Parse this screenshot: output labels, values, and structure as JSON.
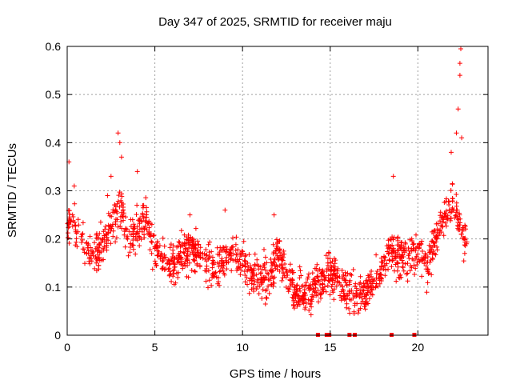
{
  "chart_data": {
    "type": "scatter",
    "title": "Day 347 of 2025, SRMTID for receiver maju",
    "xlabel": "GPS time / hours",
    "ylabel": "SRMTID / TECUs",
    "xlim": [
      0,
      24
    ],
    "ylim": [
      0,
      0.6
    ],
    "xticks": [
      0,
      5,
      10,
      15,
      20
    ],
    "xtick_labels": [
      "0",
      "5",
      "10",
      "15",
      "20"
    ],
    "yticks": [
      0,
      0.1,
      0.2,
      0.3,
      0.4,
      0.5,
      0.6
    ],
    "ytick_labels": [
      "0",
      "0.1",
      "0.2",
      "0.3",
      "0.4",
      "0.5",
      "0.6"
    ],
    "grid": true,
    "marker": "plus",
    "color": "#ff0000",
    "series": [
      {
        "name": "SRMTID",
        "trend": [
          [
            0.0,
            0.24
          ],
          [
            0.5,
            0.22
          ],
          [
            1.0,
            0.18
          ],
          [
            1.5,
            0.16
          ],
          [
            2.0,
            0.19
          ],
          [
            2.5,
            0.22
          ],
          [
            3.0,
            0.27
          ],
          [
            3.5,
            0.2
          ],
          [
            4.0,
            0.22
          ],
          [
            4.5,
            0.24
          ],
          [
            5.0,
            0.18
          ],
          [
            5.5,
            0.15
          ],
          [
            6.0,
            0.15
          ],
          [
            6.5,
            0.16
          ],
          [
            7.0,
            0.18
          ],
          [
            7.5,
            0.17
          ],
          [
            8.0,
            0.15
          ],
          [
            8.5,
            0.14
          ],
          [
            9.0,
            0.16
          ],
          [
            9.5,
            0.17
          ],
          [
            10.0,
            0.15
          ],
          [
            10.5,
            0.13
          ],
          [
            11.0,
            0.12
          ],
          [
            11.5,
            0.12
          ],
          [
            12.0,
            0.17
          ],
          [
            12.5,
            0.12
          ],
          [
            13.0,
            0.09
          ],
          [
            13.5,
            0.08
          ],
          [
            14.0,
            0.1
          ],
          [
            14.5,
            0.11
          ],
          [
            15.0,
            0.13
          ],
          [
            15.5,
            0.11
          ],
          [
            16.0,
            0.09
          ],
          [
            16.5,
            0.08
          ],
          [
            17.0,
            0.09
          ],
          [
            17.5,
            0.11
          ],
          [
            18.0,
            0.14
          ],
          [
            18.5,
            0.17
          ],
          [
            19.0,
            0.16
          ],
          [
            19.5,
            0.16
          ],
          [
            20.0,
            0.18
          ],
          [
            20.5,
            0.14
          ],
          [
            21.0,
            0.2
          ],
          [
            21.5,
            0.25
          ],
          [
            22.0,
            0.28
          ],
          [
            22.5,
            0.22
          ],
          [
            22.8,
            0.2
          ]
        ],
        "spread": 0.05,
        "n_points": 1500,
        "peaks": [
          [
            0.1,
            0.36
          ],
          [
            0.4,
            0.31
          ],
          [
            2.3,
            0.29
          ],
          [
            2.5,
            0.33
          ],
          [
            2.9,
            0.42
          ],
          [
            3.0,
            0.4
          ],
          [
            3.1,
            0.37
          ],
          [
            4.0,
            0.34
          ],
          [
            7.0,
            0.25
          ],
          [
            9.0,
            0.26
          ],
          [
            11.8,
            0.25
          ],
          [
            18.6,
            0.33
          ],
          [
            21.9,
            0.38
          ],
          [
            22.2,
            0.42
          ],
          [
            22.3,
            0.47
          ],
          [
            22.4,
            0.54
          ],
          [
            22.4,
            0.565
          ],
          [
            22.45,
            0.595
          ],
          [
            22.5,
            0.41
          ]
        ],
        "zero_points": [
          14.3,
          14.8,
          14.95,
          16.1,
          16.4,
          18.5,
          19.8
        ]
      }
    ]
  }
}
